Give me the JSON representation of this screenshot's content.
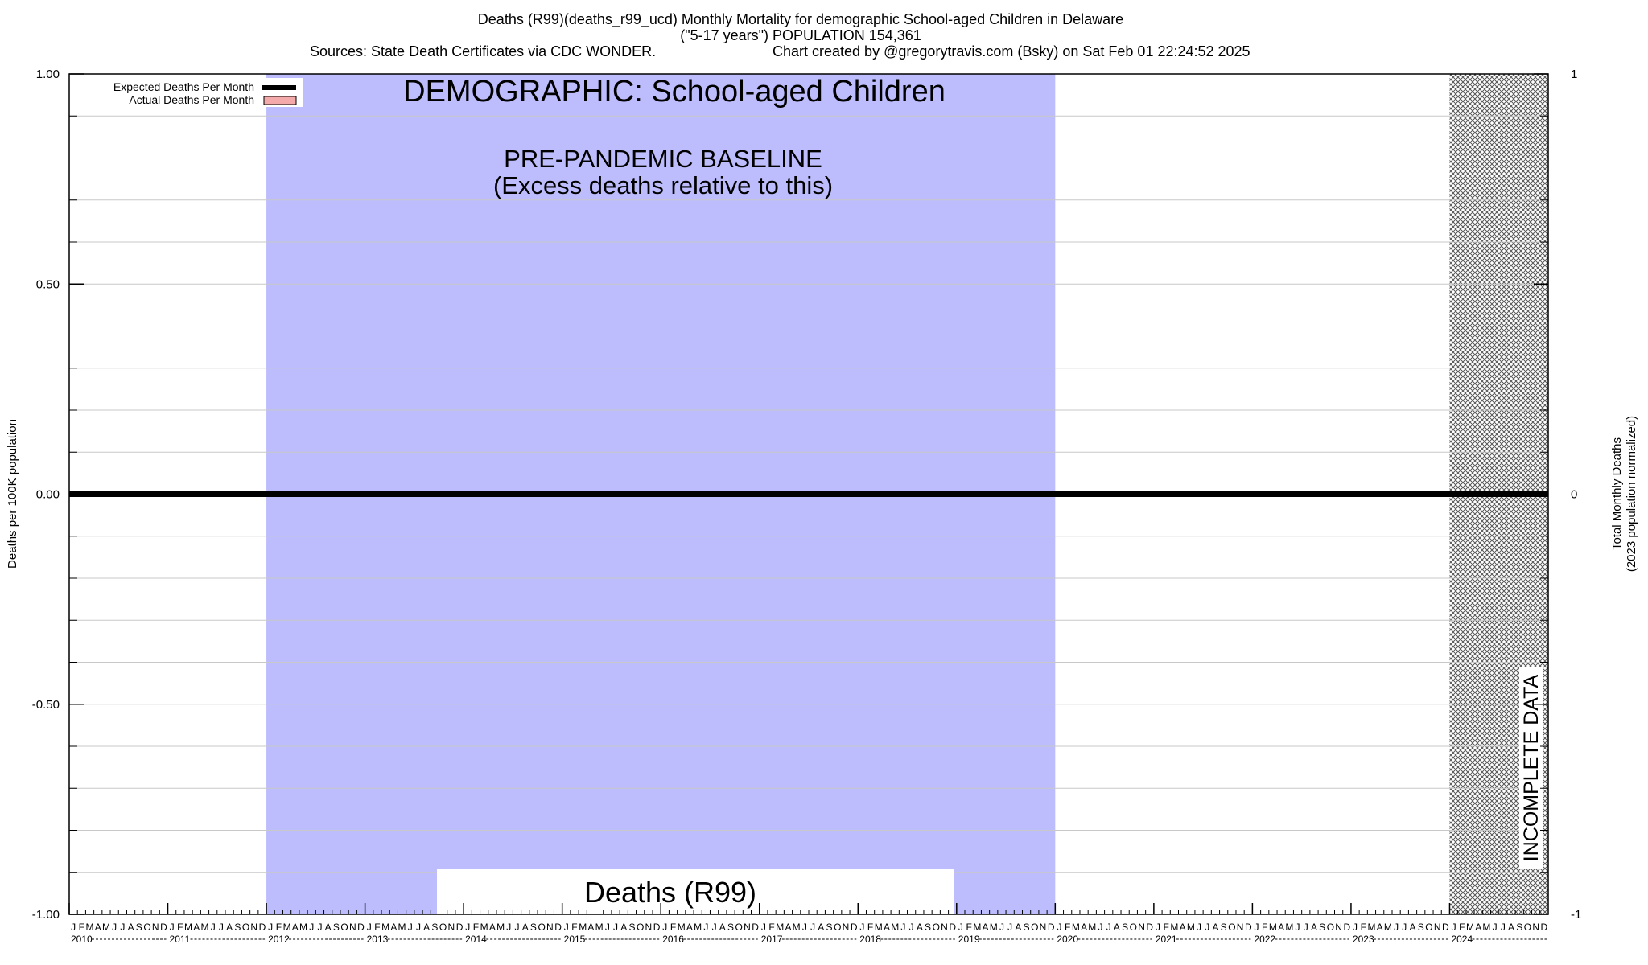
{
  "header": {
    "line1": "Deaths (R99)(deaths_r99_ucd) Monthly Mortality for demographic School-aged Children in Delaware",
    "line2": "(\"5-17 years\") POPULATION 154,361",
    "sources": "Sources: State Death Certificates via CDC WONDER.",
    "credit": "Chart created by @gregorytravis.com (Bsky) on Sat Feb 01 22:24:52 2025"
  },
  "chart_data": {
    "type": "line",
    "title": "Deaths (R99)",
    "ylabel": "Deaths per 100K population",
    "y2label": [
      "Total Monthly Deaths",
      "(2023 population normalized)"
    ],
    "ylim": [
      -1.0,
      1.0
    ],
    "yticks": [
      "1.00",
      "0.50",
      "0.00",
      "-0.50",
      "-1.00"
    ],
    "y2ticks": [
      "1",
      "0",
      "-1"
    ],
    "xlim": [
      "2010-01",
      "2024-12"
    ],
    "years": [
      "2010",
      "2011",
      "2012",
      "2013",
      "2014",
      "2015",
      "2016",
      "2017",
      "2018",
      "2019",
      "2020",
      "2021",
      "2022",
      "2023",
      "2024"
    ],
    "month_letters": [
      "J",
      "F",
      "M",
      "A",
      "M",
      "J",
      "J",
      "A",
      "S",
      "O",
      "N",
      "D"
    ],
    "legend": {
      "position": "top-left",
      "entries": [
        {
          "label": "Expected Deaths Per Month",
          "color": "#000000"
        },
        {
          "label": "Actual Deaths Per Month",
          "color": "#f4aaaa"
        }
      ]
    },
    "series": [
      {
        "name": "Expected Deaths Per Month",
        "x_start": "2010-01",
        "x_end": "2024-12",
        "value": 0.0,
        "color": "#000000"
      }
    ],
    "baseline_region": {
      "start": "2012-01",
      "end": "2019-12",
      "color": "#bdbdfd"
    },
    "incomplete_region": {
      "start": "2024-01",
      "end": "2024-12"
    },
    "annotations": {
      "demographic": "DEMOGRAPHIC: School-aged Children",
      "baseline_line1": "PRE-PANDEMIC BASELINE",
      "baseline_line2": "(Excess deaths relative to this)",
      "incomplete": "INCOMPLETE DATA",
      "cause": "Deaths (R99)"
    },
    "grid": true
  }
}
